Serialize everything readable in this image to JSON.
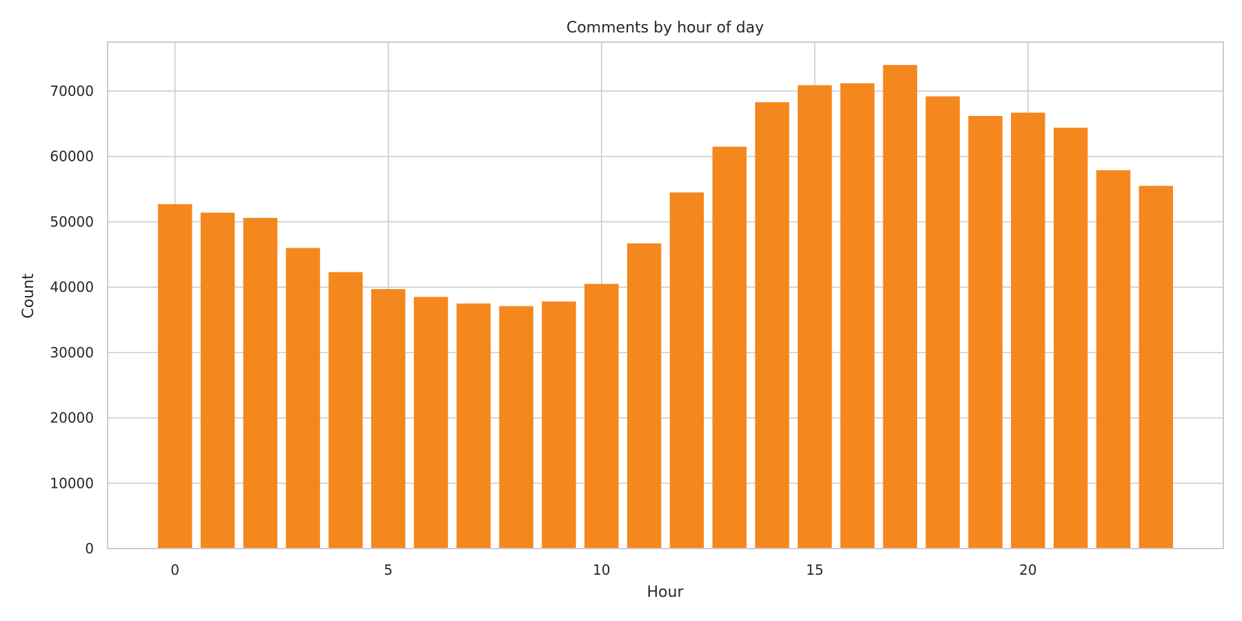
{
  "chart_data": {
    "type": "bar",
    "title": "Comments by hour of day",
    "xlabel": "Hour",
    "ylabel": "Count",
    "categories": [
      0,
      1,
      2,
      3,
      4,
      5,
      6,
      7,
      8,
      9,
      10,
      11,
      12,
      13,
      14,
      15,
      16,
      17,
      18,
      19,
      20,
      21,
      22,
      23
    ],
    "values": [
      52700,
      51400,
      50600,
      46000,
      42300,
      39700,
      38500,
      37500,
      37100,
      37800,
      40500,
      46700,
      54500,
      61500,
      68300,
      70900,
      71200,
      74000,
      69200,
      66200,
      66700,
      64400,
      57900,
      55500
    ],
    "xticks": [
      0,
      5,
      10,
      15,
      20
    ],
    "yticks": [
      0,
      10000,
      20000,
      30000,
      40000,
      50000,
      60000,
      70000
    ],
    "xlim": [
      -1.58,
      24.58
    ],
    "ylim": [
      0,
      77500
    ],
    "grid": true,
    "bar_color": "#f5871f"
  }
}
